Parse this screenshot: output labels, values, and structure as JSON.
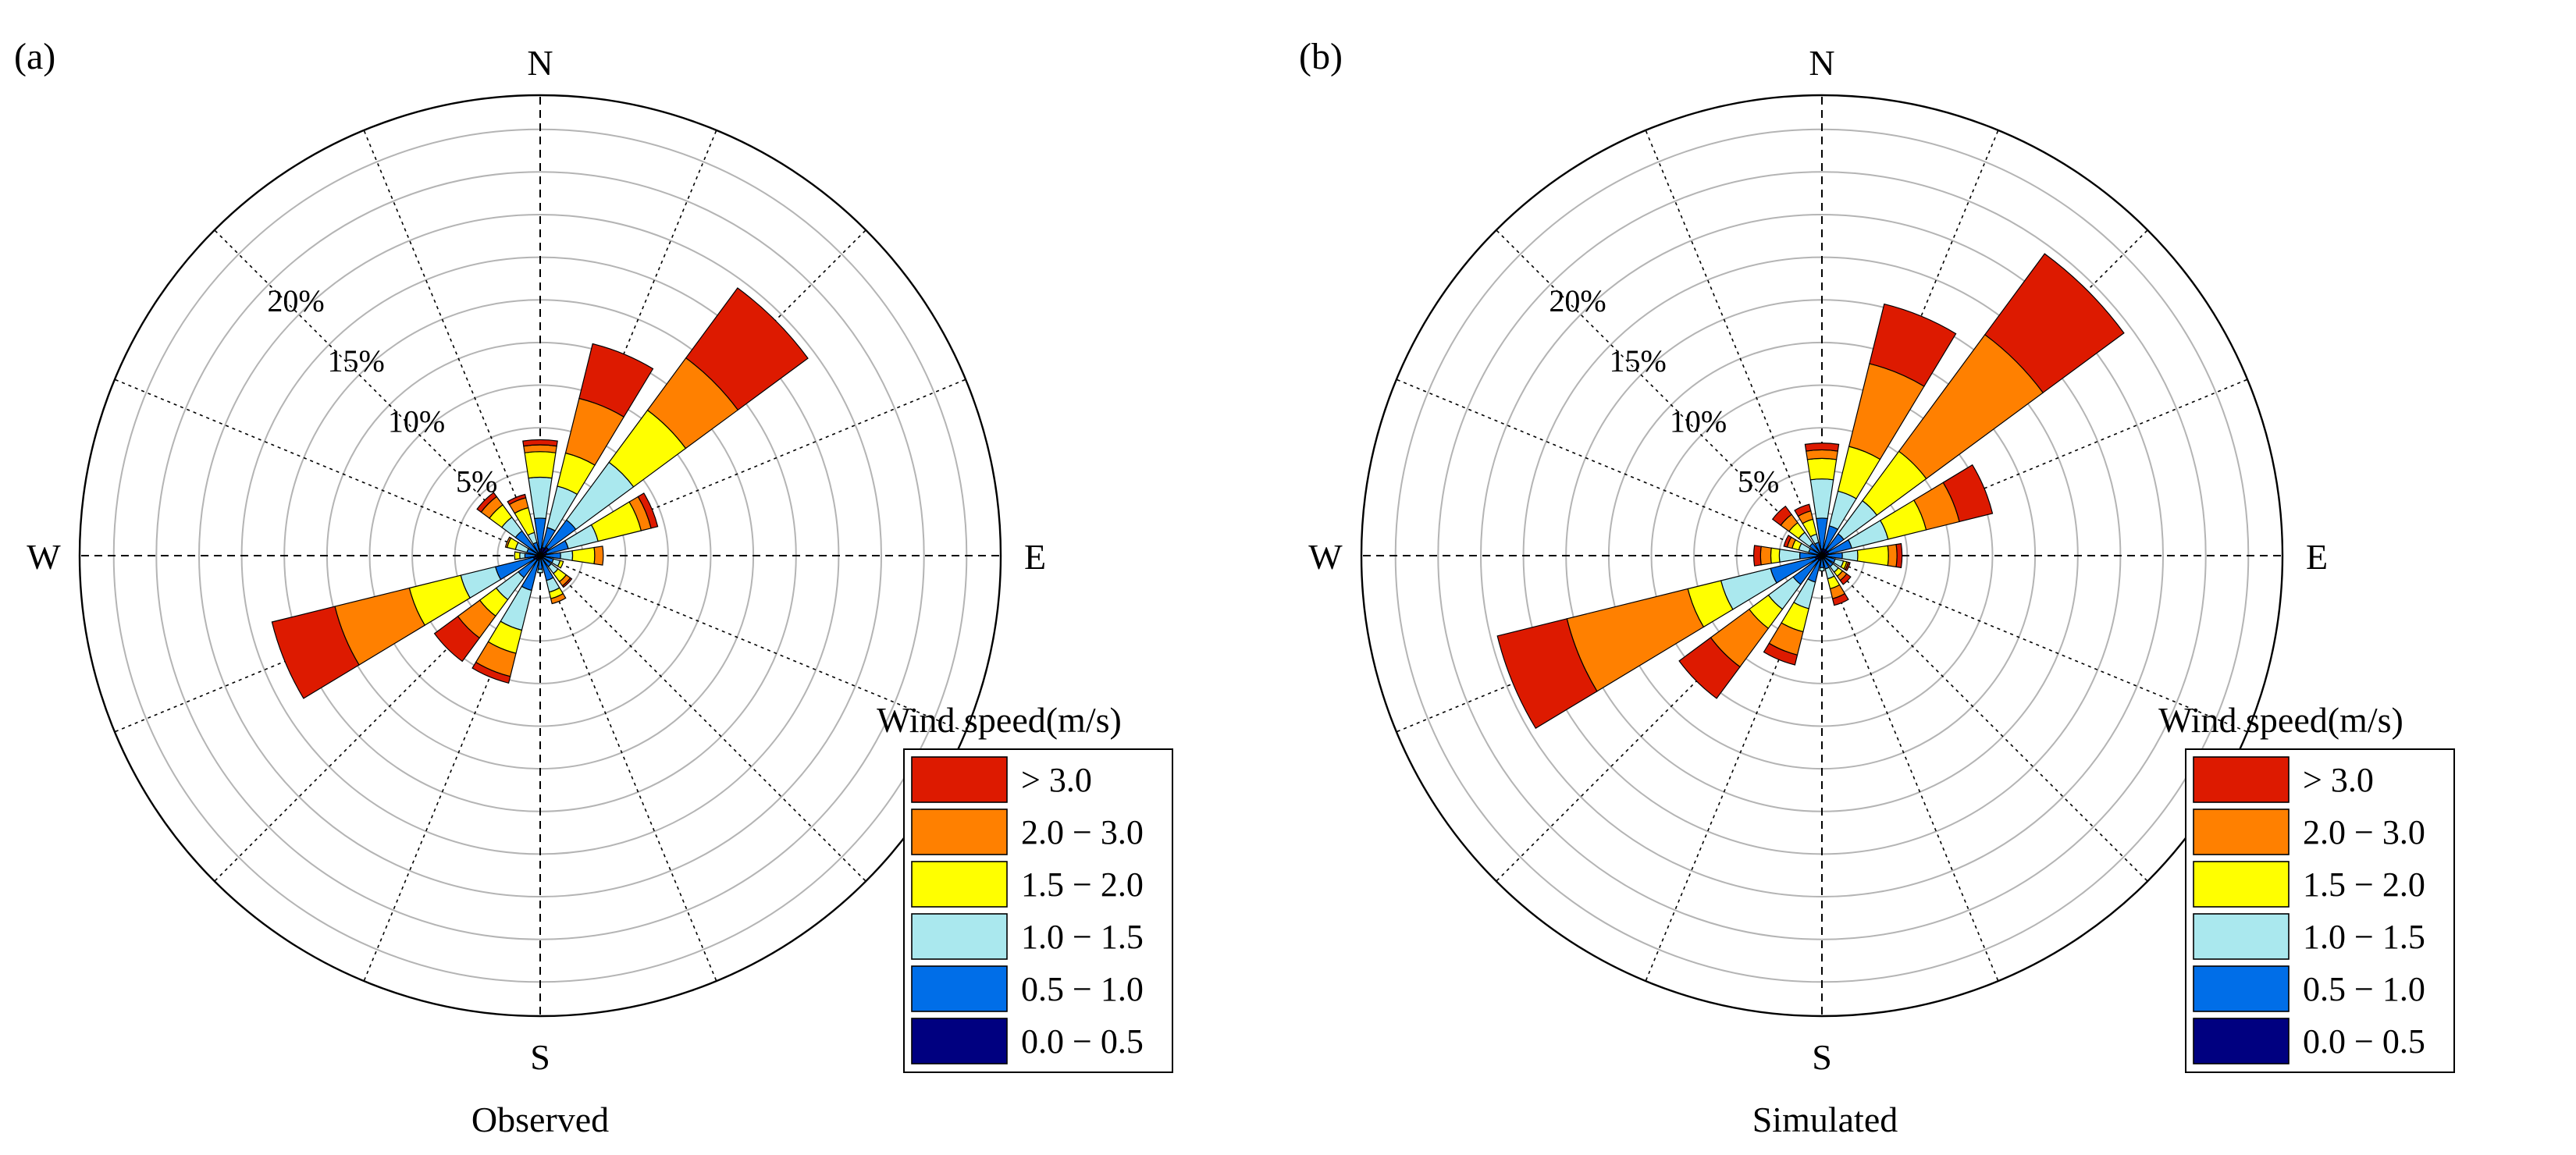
{
  "legend": {
    "title": "Wind speed(m/s)",
    "bins": [
      {
        "label": "> 3.0",
        "color": "#dd1a00"
      },
      {
        "label": "2.0 − 3.0",
        "color": "#ff8000"
      },
      {
        "label": "1.5 − 2.0",
        "color": "#ffff00"
      },
      {
        "label": "1.0 − 1.5",
        "color": "#aae8ee"
      },
      {
        "label": "0.5 − 1.0",
        "color": "#006ee8"
      },
      {
        "label": "0.0 − 0.5",
        "color": "#000080"
      }
    ]
  },
  "chart_data": [
    {
      "type": "windrose",
      "panel_label": "(a)",
      "title": "Observed",
      "directions": [
        "N",
        "NNE",
        "NE",
        "ENE",
        "E",
        "ESE",
        "SE",
        "SSE",
        "S",
        "SSW",
        "SW",
        "WSW",
        "W",
        "WNW",
        "NW",
        "NNW"
      ],
      "compass_labels": [
        "N",
        "E",
        "S",
        "W"
      ],
      "radial_ticks": [
        5,
        10,
        15,
        20
      ],
      "radial_tick_labels": [
        "5%",
        "10%",
        "15%",
        "20%"
      ],
      "rmax": 27,
      "series_order": [
        "0.0 − 0.5",
        "0.5 − 1.0",
        "1.0 − 1.5",
        "1.5 − 2.0",
        "2.0 − 3.0",
        "> 3.0"
      ],
      "values": [
        [
          0.4,
          1.8,
          2.4,
          1.5,
          0.4,
          0.3
        ],
        [
          0.5,
          1.2,
          2.5,
          2.0,
          3.3,
          3.3
        ],
        [
          0.6,
          2.0,
          4.2,
          3.8,
          3.8,
          5.1
        ],
        [
          0.4,
          1.3,
          1.8,
          2.6,
          0.6,
          0.4
        ],
        [
          0.3,
          0.9,
          0.7,
          1.3,
          0.5,
          0.0
        ],
        [
          0.2,
          0.6,
          0.4,
          0.2,
          0.0,
          0.0
        ],
        [
          0.2,
          0.6,
          0.5,
          0.6,
          0.3,
          0.1
        ],
        [
          0.2,
          1.3,
          0.7,
          0.4,
          0.3,
          0.0
        ],
        [
          0.2,
          0.6,
          0.2,
          0.0,
          0.0,
          0.0
        ],
        [
          0.3,
          1.8,
          2.4,
          1.4,
          1.4,
          0.4
        ],
        [
          0.3,
          1.3,
          1.6,
          1.2,
          1.6,
          1.7
        ],
        [
          0.4,
          2.3,
          2.1,
          3.1,
          4.5,
          3.8
        ],
        [
          0.3,
          0.6,
          0.3,
          0.3,
          0.0,
          0.0
        ],
        [
          0.2,
          0.6,
          0.7,
          0.5,
          0.1,
          0.0
        ],
        [
          0.2,
          1.6,
          1.0,
          0.9,
          0.6,
          0.3
        ],
        [
          0.2,
          0.6,
          0.6,
          1.5,
          0.6,
          0.2
        ]
      ]
    },
    {
      "type": "windrose",
      "panel_label": "(b)",
      "title": "Simulated",
      "directions": [
        "N",
        "NNE",
        "NE",
        "ENE",
        "E",
        "ESE",
        "SE",
        "SSE",
        "S",
        "SSW",
        "SW",
        "WSW",
        "W",
        "WNW",
        "NW",
        "NNW"
      ],
      "compass_labels": [
        "N",
        "E",
        "S",
        "W"
      ],
      "radial_ticks": [
        5,
        10,
        15,
        20
      ],
      "radial_tick_labels": [
        "5%",
        "10%",
        "15%",
        "20%"
      ],
      "rmax": 27,
      "series_order": [
        "0.0 − 0.5",
        "0.5 − 1.0",
        "1.0 − 1.5",
        "1.5 − 2.0",
        "2.0 − 3.0",
        "> 3.0"
      ],
      "values": [
        [
          0.4,
          1.8,
          2.3,
          1.2,
          0.5,
          0.4
        ],
        [
          0.4,
          1.4,
          2.1,
          2.7,
          5.0,
          3.6
        ],
        [
          0.4,
          1.2,
          2.4,
          3.6,
          8.5,
          5.9
        ],
        [
          0.4,
          1.4,
          2.2,
          2.3,
          2.0,
          2.0
        ],
        [
          0.3,
          0.9,
          0.9,
          1.8,
          0.5,
          0.3
        ],
        [
          0.2,
          0.6,
          0.5,
          0.2,
          0.1,
          0.1
        ],
        [
          0.2,
          0.6,
          0.4,
          0.3,
          0.3,
          0.3
        ],
        [
          0.2,
          0.6,
          0.6,
          0.6,
          0.6,
          0.4
        ],
        [
          0.2,
          0.5,
          0.2,
          0.0,
          0.0,
          0.0
        ],
        [
          0.3,
          1.3,
          1.6,
          1.4,
          1.4,
          0.6
        ],
        [
          0.3,
          1.8,
          1.8,
          1.4,
          2.8,
          2.3
        ],
        [
          0.4,
          2.7,
          3.0,
          2.0,
          7.3,
          4.2
        ],
        [
          0.3,
          1.0,
          1.2,
          0.5,
          0.6,
          0.4
        ],
        [
          0.2,
          0.6,
          0.6,
          0.4,
          0.3,
          0.2
        ],
        [
          0.2,
          0.7,
          0.8,
          0.7,
          0.6,
          0.6
        ],
        [
          0.2,
          0.6,
          0.5,
          0.9,
          0.5,
          0.4
        ]
      ]
    }
  ]
}
